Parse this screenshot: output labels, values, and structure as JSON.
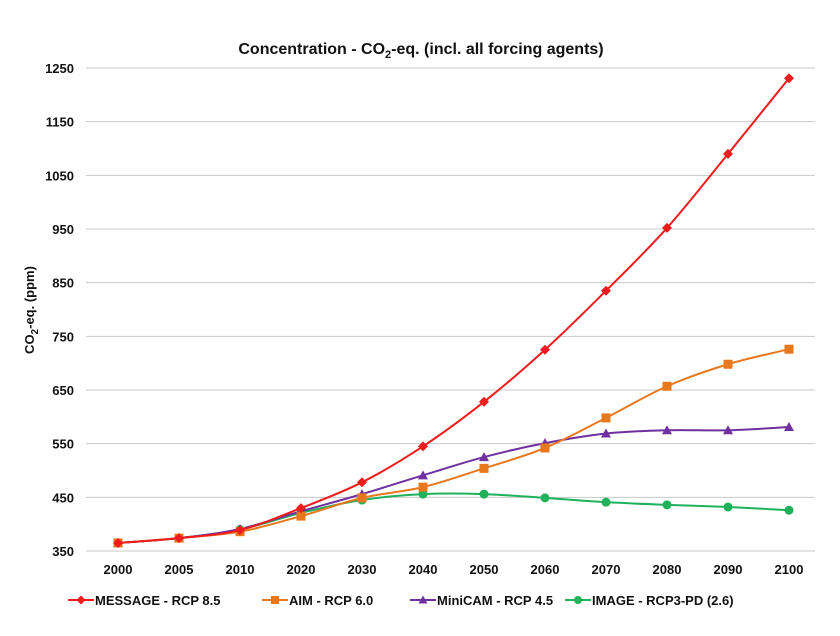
{
  "chart_data": {
    "type": "line",
    "title": {
      "main": "Concentration - CO",
      "sub": "2",
      "rest": "-eq. (incl. all forcing agents)"
    },
    "ylabel": {
      "main": "CO",
      "sub": "2",
      "rest": "-eq. (ppm)"
    },
    "xlabel": "",
    "categories": [
      "2000",
      "2005",
      "2010",
      "2020",
      "2030",
      "2040",
      "2050",
      "2060",
      "2070",
      "2080",
      "2090",
      "2100"
    ],
    "ylim": [
      350,
      1250
    ],
    "yticks": [
      350,
      450,
      550,
      650,
      750,
      850,
      950,
      1050,
      1150,
      1250
    ],
    "grid": true,
    "legend_position": "bottom",
    "series": [
      {
        "name": "MESSAGE - RCP 8.5",
        "color": "#ee1c1c",
        "marker": "diamond",
        "values": [
          365,
          374,
          389,
          430,
          478,
          545,
          628,
          725,
          835,
          952,
          1090,
          1231
        ]
      },
      {
        "name": "AIM - RCP 6.0",
        "color": "#e8781e",
        "marker": "square",
        "values": [
          365,
          374,
          386,
          415,
          449,
          469,
          504,
          542,
          598,
          657,
          698,
          726
        ]
      },
      {
        "name": "MiniCAM - RCP 4.5",
        "color": "#7030a0",
        "marker": "triangle",
        "values": [
          365,
          374,
          391,
          424,
          456,
          491,
          525,
          551,
          569,
          575,
          575,
          581
        ]
      },
      {
        "name": "IMAGE - RCP3-PD (2.6)",
        "color": "#1fb25a",
        "marker": "circle",
        "values": [
          365,
          374,
          390,
          421,
          445,
          456,
          456,
          449,
          441,
          436,
          432,
          426
        ]
      }
    ]
  }
}
